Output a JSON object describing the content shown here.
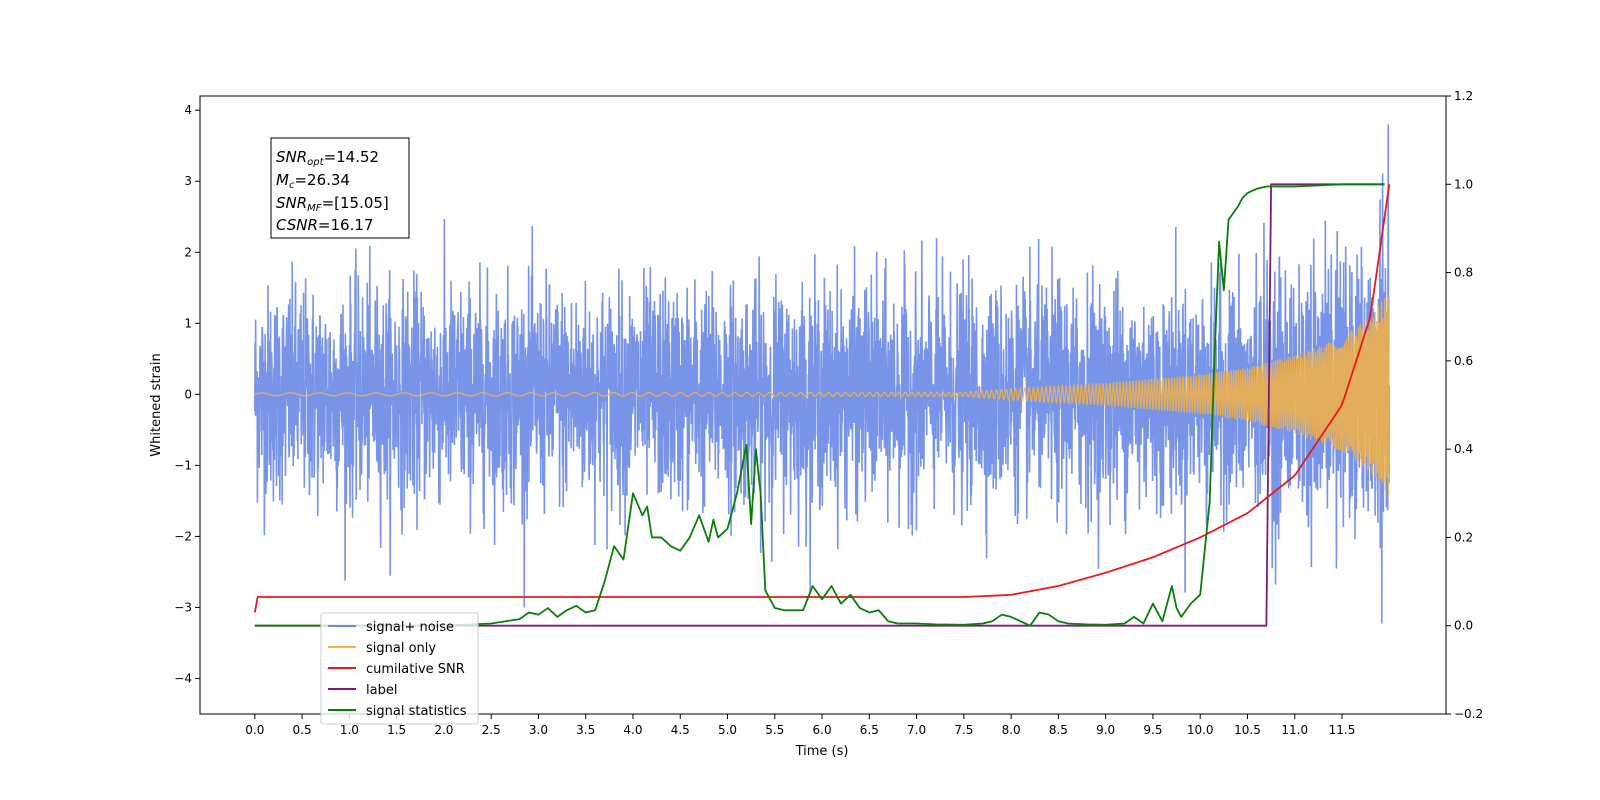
{
  "chart_data": {
    "type": "line",
    "xlabel": "Time (s)",
    "ylabel_left": "Whitened strain",
    "ylabel_right": "",
    "xlim": [
      -0.58,
      12.6
    ],
    "ylim_left": [
      -4.5,
      4.2
    ],
    "ylim_right": [
      -0.2,
      1.2
    ],
    "x_ticks": [
      "0.0",
      "0.5",
      "1.0",
      "1.5",
      "2.0",
      "2.5",
      "3.0",
      "3.5",
      "4.0",
      "4.5",
      "5.0",
      "5.5",
      "6.0",
      "6.5",
      "7.0",
      "7.5",
      "8.0",
      "8.5",
      "9.0",
      "9.5",
      "10.0",
      "10.5",
      "11.0",
      "11.5"
    ],
    "y_ticks_left": [
      "-4",
      "-3",
      "-2",
      "-1",
      "0",
      "1",
      "2",
      "3",
      "4"
    ],
    "y_ticks_right": [
      "-0.2",
      "0.0",
      "0.2",
      "0.4",
      "0.6",
      "0.8",
      "1.0",
      "1.2"
    ],
    "grid": false,
    "legend_position": "lower-left",
    "info_box": {
      "lines": [
        {
          "name": "SNR",
          "sub": "opt",
          "value": "=14.52"
        },
        {
          "name": "M",
          "sub": "c",
          "value": "=26.34"
        },
        {
          "name": "SNR",
          "sub": "MF",
          "value": "=[15.05]"
        },
        {
          "name": "CSNR",
          "sub": "",
          "value": "=16.17"
        }
      ]
    },
    "series": [
      {
        "name": "signal+ noise",
        "color": "#6d8be6",
        "axis": "left",
        "x_range": [
          0.0,
          12.0
        ],
        "noise_sigma": 0.75,
        "noise_max": 3.8,
        "noise_min": -3.72
      },
      {
        "name": "signal only",
        "color": "#f5b342",
        "axis": "left",
        "x": [
          0.0,
          7.5,
          8.0,
          8.5,
          9.0,
          9.5,
          10.0,
          10.5,
          11.0,
          11.5,
          11.8,
          12.0
        ],
        "amplitude": [
          0.02,
          0.03,
          0.08,
          0.12,
          0.16,
          0.22,
          0.28,
          0.38,
          0.55,
          0.8,
          1.1,
          1.45
        ]
      },
      {
        "name": "cumilative SNR",
        "color": "#e81b1b",
        "axis": "right",
        "x": [
          0.0,
          0.01,
          7.5,
          8.0,
          8.5,
          9.0,
          9.5,
          10.0,
          10.5,
          11.0,
          11.5,
          11.8,
          12.0
        ],
        "y": [
          0.03,
          0.065,
          0.065,
          0.07,
          0.09,
          0.12,
          0.155,
          0.2,
          0.255,
          0.34,
          0.5,
          0.7,
          1.0
        ]
      },
      {
        "name": "label",
        "color": "#7b1c7b",
        "axis": "right",
        "x": [
          0.0,
          10.7,
          10.75,
          11.95
        ],
        "y": [
          0.0,
          0.0,
          1.0,
          1.0
        ]
      },
      {
        "name": "signal statistics",
        "color": "#0a7d0a",
        "axis": "right",
        "x": [
          0.0,
          1.0,
          2.0,
          2.5,
          2.8,
          2.9,
          3.0,
          3.1,
          3.2,
          3.3,
          3.4,
          3.5,
          3.6,
          3.7,
          3.8,
          3.9,
          4.0,
          4.1,
          4.15,
          4.2,
          4.3,
          4.4,
          4.5,
          4.6,
          4.7,
          4.8,
          4.85,
          4.9,
          5.0,
          5.1,
          5.2,
          5.25,
          5.3,
          5.35,
          5.4,
          5.5,
          5.6,
          5.7,
          5.8,
          5.9,
          6.0,
          6.1,
          6.2,
          6.3,
          6.4,
          6.5,
          6.6,
          6.7,
          6.8,
          7.0,
          7.2,
          7.5,
          7.7,
          7.8,
          7.9,
          8.0,
          8.1,
          8.2,
          8.3,
          8.4,
          8.5,
          8.6,
          8.8,
          9.0,
          9.2,
          9.3,
          9.4,
          9.5,
          9.6,
          9.7,
          9.75,
          9.8,
          9.9,
          10.0,
          10.1,
          10.15,
          10.2,
          10.25,
          10.3,
          10.4,
          10.45,
          10.5,
          10.6,
          10.7,
          11.0,
          11.5,
          11.95
        ],
        "y": [
          0.0,
          0.0,
          0.0,
          0.005,
          0.015,
          0.03,
          0.025,
          0.04,
          0.02,
          0.035,
          0.045,
          0.03,
          0.035,
          0.1,
          0.18,
          0.15,
          0.3,
          0.25,
          0.27,
          0.2,
          0.2,
          0.18,
          0.17,
          0.2,
          0.25,
          0.19,
          0.24,
          0.2,
          0.22,
          0.3,
          0.41,
          0.23,
          0.4,
          0.3,
          0.08,
          0.04,
          0.035,
          0.035,
          0.035,
          0.09,
          0.06,
          0.09,
          0.05,
          0.07,
          0.04,
          0.03,
          0.035,
          0.01,
          0.005,
          0.005,
          0.003,
          0.002,
          0.005,
          0.01,
          0.025,
          0.02,
          0.01,
          0.0,
          0.03,
          0.025,
          0.01,
          0.005,
          0.003,
          0.002,
          0.005,
          0.02,
          0.005,
          0.05,
          0.01,
          0.09,
          0.04,
          0.02,
          0.05,
          0.07,
          0.28,
          0.6,
          0.87,
          0.76,
          0.92,
          0.95,
          0.97,
          0.98,
          0.99,
          0.995,
          0.995,
          1.0,
          1.0
        ]
      }
    ]
  }
}
